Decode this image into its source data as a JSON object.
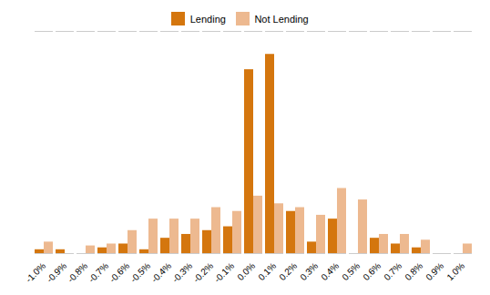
{
  "chart_data": {
    "type": "bar",
    "categories": [
      "-1.0%",
      "-0.9%",
      "-0.8%",
      "-0.7%",
      "-0.6%",
      "-0.5%",
      "-0.4%",
      "-0.3%",
      "-0.2%",
      "-0.1%",
      "0.0%",
      "0.1%",
      "0.2%",
      "0.3%",
      "0.4%",
      "0.5%",
      "0.6%",
      "0.7%",
      "0.8%",
      "0.9%",
      "1.0%"
    ],
    "series": [
      {
        "name": "Lending",
        "color": "#D4760E",
        "values": [
          1,
          1,
          0,
          1.5,
          2.5,
          1,
          4,
          5,
          6,
          7,
          48,
          52,
          11,
          3,
          9,
          0,
          4,
          2.5,
          1.5,
          0,
          0
        ]
      },
      {
        "name": "Not Lending",
        "color": "#EDB990",
        "values": [
          3,
          0,
          2,
          2.5,
          6,
          9,
          9,
          9,
          12,
          11,
          15,
          13,
          12,
          10,
          17,
          14,
          5,
          5,
          3.5,
          0,
          2.5
        ]
      }
    ],
    "ylim": [
      0,
      58
    ],
    "yticks": [],
    "grid": false,
    "legend": "top",
    "tick_labels": "x"
  }
}
